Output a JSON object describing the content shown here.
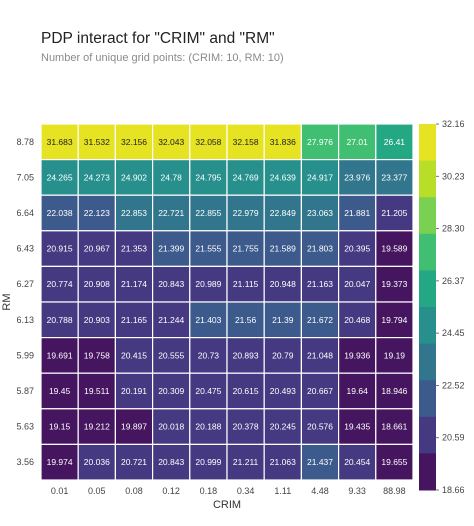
{
  "chart_data": {
    "type": "heatmap",
    "title": "PDP interact for \"CRIM\" and \"RM\"",
    "subtitle": "Number of unique grid points: (CRIM: 10, RM: 10)",
    "xlabel": "CRIM",
    "ylabel": "RM",
    "x_categories": [
      "0.01",
      "0.05",
      "0.08",
      "0.12",
      "0.18",
      "0.34",
      "1.11",
      "4.48",
      "9.33",
      "88.98"
    ],
    "y_categories": [
      "8.78",
      "7.05",
      "6.64",
      "6.43",
      "6.27",
      "6.13",
      "5.99",
      "5.87",
      "5.63",
      "3.56"
    ],
    "values": [
      [
        "31.683",
        "31.532",
        "32.156",
        "32.043",
        "32.058",
        "32.158",
        "31.836",
        "27.976",
        "27.01",
        "26.41"
      ],
      [
        "24.265",
        "24.273",
        "24.902",
        "24.78",
        "24.795",
        "24.769",
        "24.639",
        "24.917",
        "23.976",
        "23.377"
      ],
      [
        "22.038",
        "22.123",
        "22.853",
        "22.721",
        "22.855",
        "22.979",
        "22.849",
        "23.063",
        "21.881",
        "21.205"
      ],
      [
        "20.915",
        "20.967",
        "21.353",
        "21.399",
        "21.555",
        "21.755",
        "21.589",
        "21.803",
        "20.395",
        "19.589"
      ],
      [
        "20.774",
        "20.908",
        "21.174",
        "20.843",
        "20.989",
        "21.115",
        "20.948",
        "21.163",
        "20.047",
        "19.373"
      ],
      [
        "20.788",
        "20.903",
        "21.165",
        "21.244",
        "21.403",
        "21.56",
        "21.39",
        "21.672",
        "20.468",
        "19.794"
      ],
      [
        "19.691",
        "19.758",
        "20.415",
        "20.555",
        "20.73",
        "20.893",
        "20.79",
        "21.048",
        "19.936",
        "19.19"
      ],
      [
        "19.45",
        "19.511",
        "20.191",
        "20.309",
        "20.475",
        "20.615",
        "20.493",
        "20.667",
        "19.64",
        "18.946"
      ],
      [
        "19.15",
        "19.212",
        "19.897",
        "20.018",
        "20.188",
        "20.378",
        "20.245",
        "20.576",
        "19.435",
        "18.661"
      ],
      [
        "19.974",
        "20.036",
        "20.721",
        "20.843",
        "20.999",
        "21.211",
        "21.063",
        "21.437",
        "20.454",
        "19.655"
      ]
    ],
    "colorbar": {
      "ticks": [
        "32.16",
        "30.23",
        "28.30",
        "26.37",
        "24.45",
        "22.52",
        "20.59",
        "18.66"
      ],
      "min": 18.66,
      "max": 32.16,
      "colors": [
        "#45155f",
        "#453981",
        "#3c5a8b",
        "#31768d",
        "#27908d",
        "#24a884",
        "#40bf72",
        "#7ad151",
        "#b9de28",
        "#e6e323"
      ]
    },
    "grid": false
  }
}
